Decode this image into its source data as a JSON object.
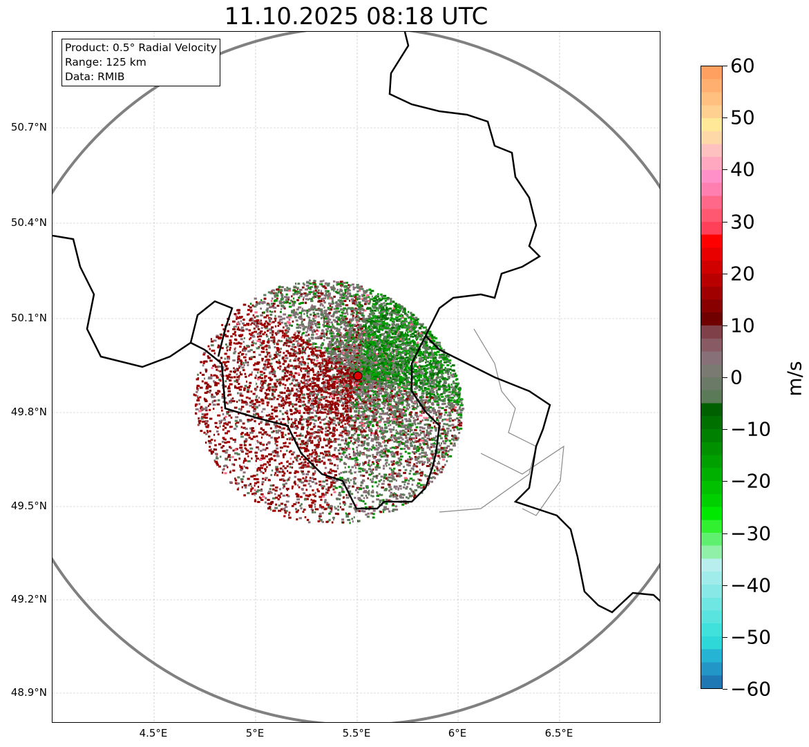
{
  "title": "11.10.2025 08:18 UTC",
  "info": {
    "product": "Product: 0.5° Radial Velocity",
    "range": "Range: 125 km",
    "data": "Data: RMIB"
  },
  "axes": {
    "lat_ticks": [
      "50.7°N",
      "50.4°N",
      "50.1°N",
      "49.8°N",
      "49.5°N",
      "49.2°N",
      "48.9°N"
    ],
    "lon_ticks": [
      "4.5°E",
      "5°E",
      "5.5°E",
      "6°E",
      "6.5°E"
    ]
  },
  "colorbar": {
    "unit": "m/s",
    "min": -60,
    "max": 60,
    "ticks": [
      "60",
      "50",
      "40",
      "30",
      "20",
      "10",
      "0",
      "−10",
      "−20",
      "−30",
      "−40",
      "−50",
      "−60"
    ],
    "colors_bottom_to_top": [
      "#1f77b4",
      "#2396c8",
      "#26b4d4",
      "#2ed8d8",
      "#40e0dc",
      "#5ae4e0",
      "#70e6e2",
      "#88e8e6",
      "#a0ecea",
      "#b8eeee",
      "#90f0a8",
      "#60f070",
      "#30f030",
      "#00e800",
      "#00d000",
      "#00c000",
      "#00b000",
      "#00a000",
      "#009000",
      "#008000",
      "#007000",
      "#006000",
      "#5a7a58",
      "#6a7a66",
      "#7a7a72",
      "#887078",
      "#885a64",
      "#80404a",
      "#700000",
      "#880000",
      "#a00000",
      "#b80000",
      "#d00000",
      "#e80000",
      "#ff0000",
      "#ff4058",
      "#ff5870",
      "#ff6888",
      "#ff80b0",
      "#ff90c8",
      "#ffa8c0",
      "#ffc0c0",
      "#ffd8a8",
      "#ffe898",
      "#ffd090",
      "#ffc080",
      "#ffb070",
      "#ffa060"
    ]
  },
  "radar": {
    "marker_color": "#e00000"
  }
}
